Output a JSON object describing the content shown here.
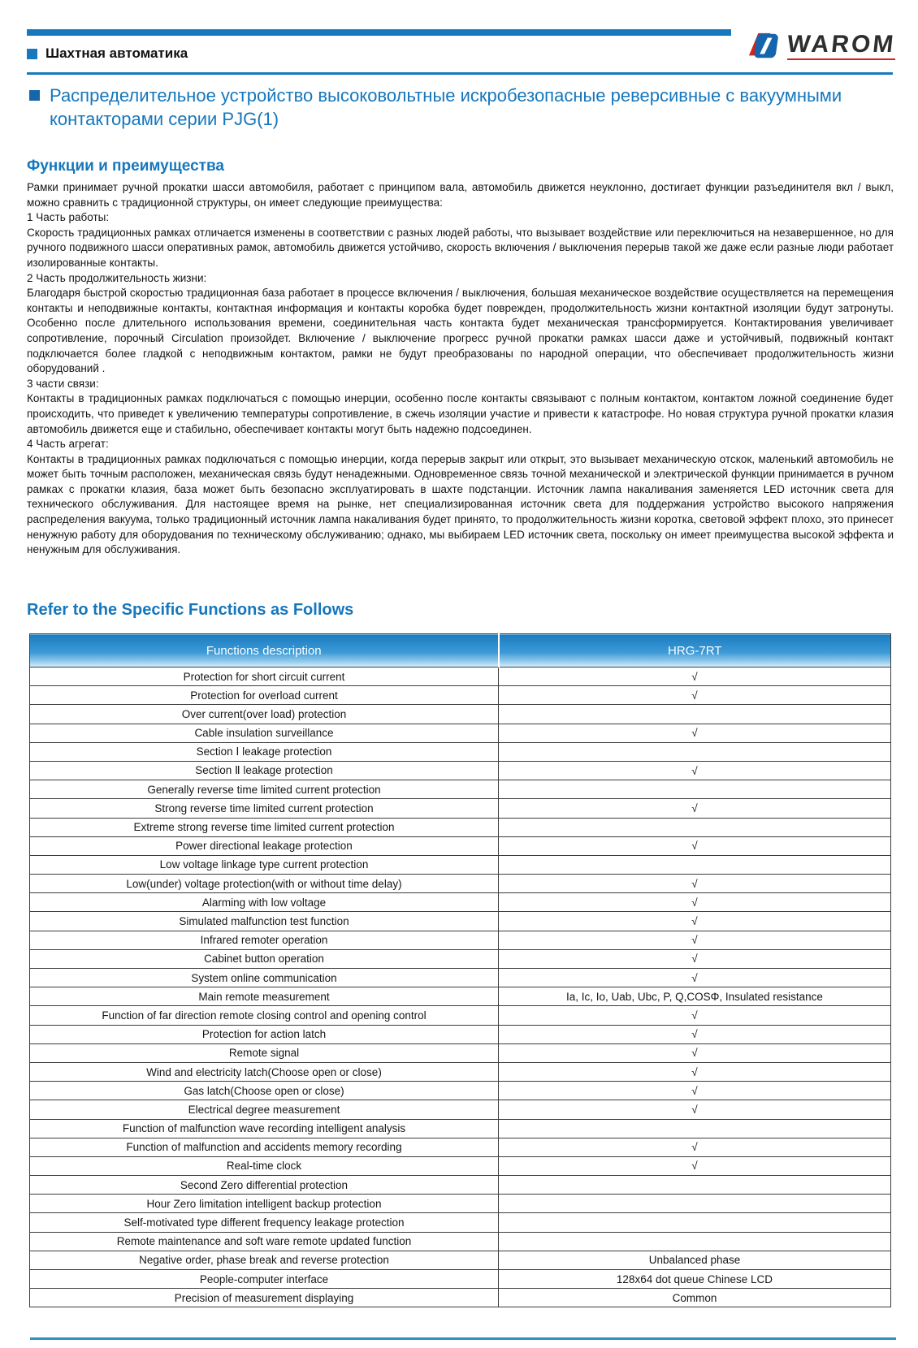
{
  "header": {
    "category": "Шахтная автоматика",
    "brand": "WAROM"
  },
  "title": "Распределительное устройство высоковольтные искробезопасные реверсивные с вакуумными контакторами серии PJG(1)",
  "functions_heading": "Функции и преимущества",
  "paragraphs": [
    "Рамки принимает ручной прокатки шасси автомобиля, работает с принципом вала, автомобиль движется неуклонно, достигает функции разъединителя вкл / выкл, можно сравнить с традиционной структуры, он имеет следующие преимущества:",
    "1 Часть работы:",
    "Скорость традиционных рамках отличается изменены в соответствии с разных людей работы, что вызывает воздействие или переключиться на незавершенное, но для ручного подвижного шасси оперативных рамок, автомобиль движется устойчиво, скорость включения / выключения перерыв такой же даже если разные люди работает изолированные контакты.",
    "2 Часть продолжительность жизни:",
    "Благодаря быстрой скоростью традиционная база работает в процессе включения / выключения, большая механическое воздействие осуществляется на перемещения контакты и неподвижные контакты, контактная информация и контакты коробка будет поврежден, продолжительность жизни контактной изоляции будут затронуты. Особенно после длительного использования времени, соединительная часть контакта будет механическая трансформируется. Контактирования увеличивает сопротивление, порочный Circulation произойдет. Включение / выключение прогресс ручной прокатки рамках шасси даже и устойчивый, подвижный контакт подключается более гладкой с неподвижным контактом, рамки не будут преобразованы по народной операции, что обеспечивает продолжительность жизни оборудований .",
    "3  части связи:",
    "Контакты в традиционных рамках подключаться с помощью инерции, особенно после контакты связывают с полным контактом, контактом ложной соединение будет происходить, что приведет к увеличению температуры сопротивление, в сжечь изоляции участие и привести к катастрофе. Но новая структура ручной прокатки клазия автомобиль движется еще и стабильно, обеспечивает контакты могут быть надежно подсоединен.",
    "4 Часть агрегат:",
    "Контакты в традиционных рамках подключаться с помощью инерции, когда перерыв закрыт или открыт, это вызывает механическую отскок, маленький автомобиль не может быть точным расположен, механическая связь будут ненадежными. Одновременное связь точной механической и электрической функции принимается в ручном рамках с прокатки клазия, база может быть безопасно эксплуатировать в шахте подстанции. Источник лампа накаливания заменяется LED источник света для технического обслуживания. Для настоящее время на рынке, нет специализированная источник света для поддержания устройство высокого напряжения распределения вакуума, только традиционный источник лампа накаливания будет принято, то продолжительность жизни коротка, световой эффект плохо, это принесет ненужную работу для оборудования по техническому обслуживанию; однако, мы выбираем LED источник света, поскольку он имеет преимущества высокой эффекта и ненужным для обслуживания."
  ],
  "table_heading": "Refer to the Specific Functions as Follows",
  "table": {
    "columns": [
      "Functions description",
      "HRG-7RT"
    ],
    "rows": [
      [
        "Protection for short circuit current",
        "√"
      ],
      [
        "Protection for overload current",
        "√"
      ],
      [
        "Over current(over load) protection",
        ""
      ],
      [
        "Cable insulation surveillance",
        "√"
      ],
      [
        "Section Ⅰ leakage protection",
        ""
      ],
      [
        "Section Ⅱ leakage protection",
        "√"
      ],
      [
        "Generally reverse time limited current protection",
        ""
      ],
      [
        "Strong reverse time limited current protection",
        "√"
      ],
      [
        "Extreme strong reverse time limited current protection",
        ""
      ],
      [
        "Power directional leakage protection",
        "√"
      ],
      [
        "Low voltage linkage type current protection",
        ""
      ],
      [
        "Low(under) voltage protection(with or without time delay)",
        "√"
      ],
      [
        "Alarming with low voltage",
        "√"
      ],
      [
        "Simulated malfunction test function",
        "√"
      ],
      [
        "Infrared remoter operation",
        "√"
      ],
      [
        "Cabinet button operation",
        "√"
      ],
      [
        "System online communication",
        "√"
      ],
      [
        "Main remote measurement",
        "Ia, Ic, Io, Uab, Ubc, P, Q,COSΦ, Insulated resistance"
      ],
      [
        "Function of far direction remote closing control and opening control",
        "√"
      ],
      [
        "Protection for action latch",
        "√"
      ],
      [
        "Remote signal",
        "√"
      ],
      [
        "Wind and electricity latch(Choose open or close)",
        "√"
      ],
      [
        "Gas latch(Choose open or close)",
        "√"
      ],
      [
        "Electrical degree measurement",
        "√"
      ],
      [
        "Function of malfunction wave recording intelligent analysis",
        ""
      ],
      [
        "Function of malfunction and accidents memory recording",
        "√"
      ],
      [
        "Real-time clock",
        "√"
      ],
      [
        "Second Zero differential protection",
        ""
      ],
      [
        "Hour Zero limitation intelligent backup protection",
        ""
      ],
      [
        "Self-motivated type different frequency leakage protection",
        ""
      ],
      [
        "Remote maintenance and soft ware remote updated function",
        ""
      ],
      [
        "Negative order, phase break and reverse protection",
        "Unbalanced phase"
      ],
      [
        "People-computer interface",
        "128x64 dot queue Chinese LCD"
      ],
      [
        "Precision of measurement displaying",
        "Common"
      ]
    ]
  },
  "colors": {
    "accent_blue": "#1577bd",
    "bar_blue": "#1878be",
    "logo_red": "#d42318",
    "table_border": "#3c3c3c"
  }
}
